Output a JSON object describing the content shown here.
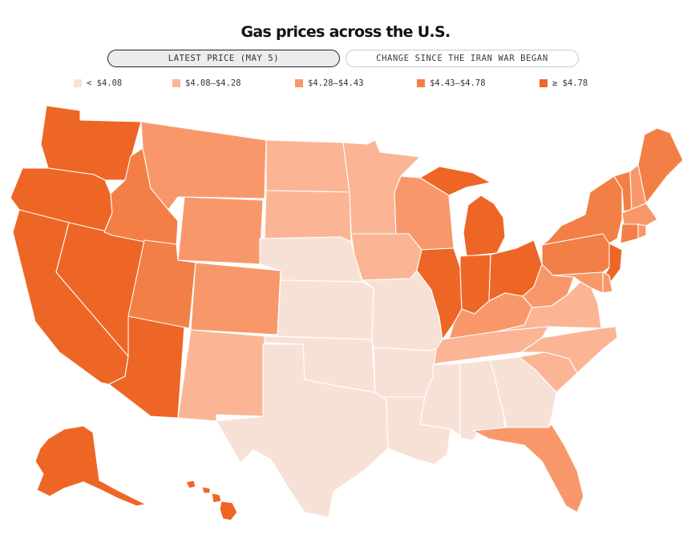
{
  "title": "Gas prices across the U.S.",
  "toggles": [
    {
      "label": "LATEST PRICE (MAY 5)",
      "active": true
    },
    {
      "label": "CHANGE SINCE THE IRAN WAR BEGAN",
      "active": false
    }
  ],
  "legend": [
    {
      "label": "< $4.08",
      "color": "#f7e1d6"
    },
    {
      "label": "$4.08–$4.28",
      "color": "#fbb595"
    },
    {
      "label": "$4.28–$4.43",
      "color": "#f8986a"
    },
    {
      "label": "$4.43–$4.78",
      "color": "#f28046"
    },
    {
      "label": "≥ $4.78",
      "color": "#ee6626"
    }
  ],
  "states": {
    "WA": 4,
    "OR": 4,
    "CA": 4,
    "NV": 4,
    "AZ": 4,
    "AK": 4,
    "HI": 4,
    "ID": 3,
    "MT": 2,
    "WY": 2,
    "UT": 3,
    "CO": 2,
    "NM": 1,
    "ND": 1,
    "SD": 1,
    "NE": 0,
    "KS": 0,
    "OK": 0,
    "TX": 0,
    "MN": 1,
    "IA": 1,
    "MO": 0,
    "AR": 0,
    "LA": 0,
    "WI": 2,
    "IL": 4,
    "MI": 4,
    "IN": 4,
    "OH": 4,
    "KY": 2,
    "TN": 1,
    "MS": 0,
    "AL": 0,
    "GA": 0,
    "FL": 2,
    "SC": 1,
    "NC": 1,
    "VA": 1,
    "WV": 2,
    "PA": 3,
    "NY": 3,
    "VT": 3,
    "NH": 2,
    "ME": 3,
    "MA": 2,
    "RI": 2,
    "CT": 3,
    "NJ": 4,
    "DE": 2,
    "MD": 2
  }
}
